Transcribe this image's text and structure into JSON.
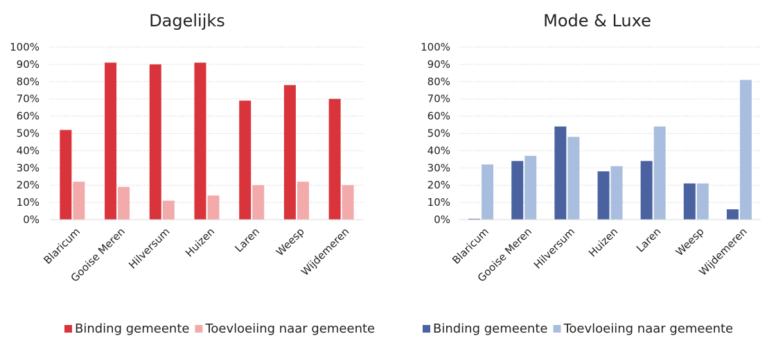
{
  "chart_data": [
    {
      "type": "bar",
      "title": "Dagelijks",
      "categories": [
        "Blaricum",
        "Gooise Meren",
        "Hilversum",
        "Huizen",
        "Laren",
        "Weesp",
        "Wijdemeren"
      ],
      "series": [
        {
          "name": "Binding gemeente",
          "color": "#d9343b",
          "values": [
            52,
            91,
            90,
            91,
            69,
            78,
            70
          ]
        },
        {
          "name": "Toevloeiing naar gemeente",
          "color": "#f2aaab",
          "values": [
            22,
            19,
            11,
            14,
            20,
            22,
            20
          ]
        }
      ],
      "ylim": [
        0,
        100
      ],
      "yticks": [
        "0%",
        "10%",
        "20%",
        "30%",
        "40%",
        "50%",
        "60%",
        "70%",
        "80%",
        "90%",
        "100%"
      ],
      "grid": true,
      "legend": "bottom"
    },
    {
      "type": "bar",
      "title": "Mode & Luxe",
      "categories": [
        "Blaricum",
        "Gooise Meren",
        "Hilversum",
        "Huizen",
        "Laren",
        "Weesp",
        "Wijdemeren"
      ],
      "series": [
        {
          "name": "Binding gemeente",
          "color": "#4a62a0",
          "values": [
            0.5,
            34,
            54,
            28,
            34,
            21,
            6
          ]
        },
        {
          "name": "Toevloeiing naar gemeente",
          "color": "#a9bedf",
          "values": [
            32,
            37,
            48,
            31,
            54,
            21,
            81
          ]
        }
      ],
      "ylim": [
        0,
        100
      ],
      "yticks": [
        "0%",
        "10%",
        "20%",
        "30%",
        "40%",
        "50%",
        "60%",
        "70%",
        "80%",
        "90%",
        "100%"
      ],
      "grid": true,
      "legend": "bottom"
    }
  ]
}
